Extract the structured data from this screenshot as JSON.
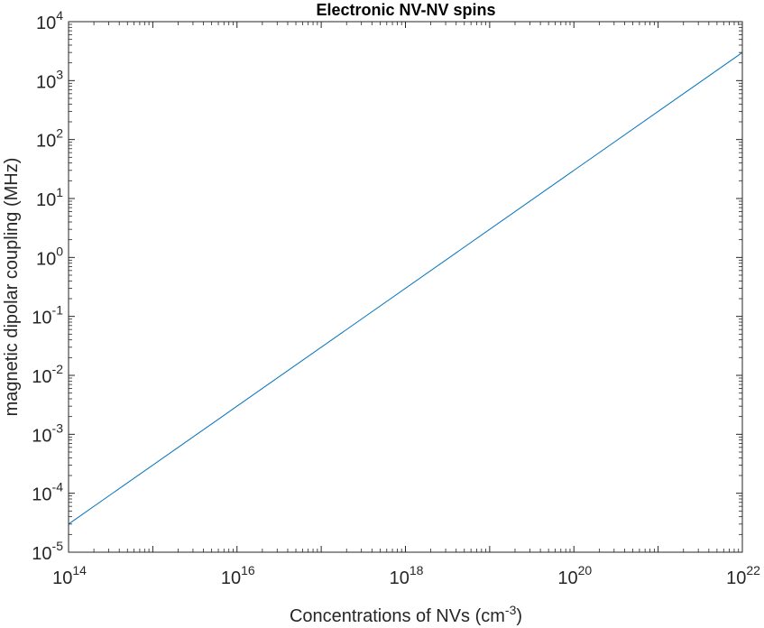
{
  "chart_data": {
    "type": "line",
    "title": "Electronic NV-NV spins",
    "xlabel": {
      "base": "Concentrations of NVs (cm",
      "exponent": "-3",
      "suffix": ")"
    },
    "ylabel": "magnetic dipolar coupling (MHz)",
    "xscale": "log",
    "yscale": "log",
    "xlim": [
      100000000000000.0,
      1e+22
    ],
    "ylim": [
      1e-05,
      10000.0
    ],
    "grid": false,
    "colors": {
      "series": "#0072bd",
      "axis": "#262626"
    },
    "x_ticks": [
      {
        "base": "10",
        "exp": "14"
      },
      {
        "base": "10",
        "exp": "16"
      },
      {
        "base": "10",
        "exp": "18"
      },
      {
        "base": "10",
        "exp": "20"
      },
      {
        "base": "10",
        "exp": "22"
      }
    ],
    "y_ticks": [
      {
        "base": "10",
        "exp": "-5"
      },
      {
        "base": "10",
        "exp": "-4"
      },
      {
        "base": "10",
        "exp": "-3"
      },
      {
        "base": "10",
        "exp": "-2"
      },
      {
        "base": "10",
        "exp": "-1"
      },
      {
        "base": "10",
        "exp": "0"
      },
      {
        "base": "10",
        "exp": "1"
      },
      {
        "base": "10",
        "exp": "2"
      },
      {
        "base": "10",
        "exp": "3"
      },
      {
        "base": "10",
        "exp": "4"
      }
    ],
    "series": [
      {
        "x": [
          100000000000000.0,
          1e+22
        ],
        "y": [
          3e-05,
          3000.0
        ]
      }
    ]
  }
}
